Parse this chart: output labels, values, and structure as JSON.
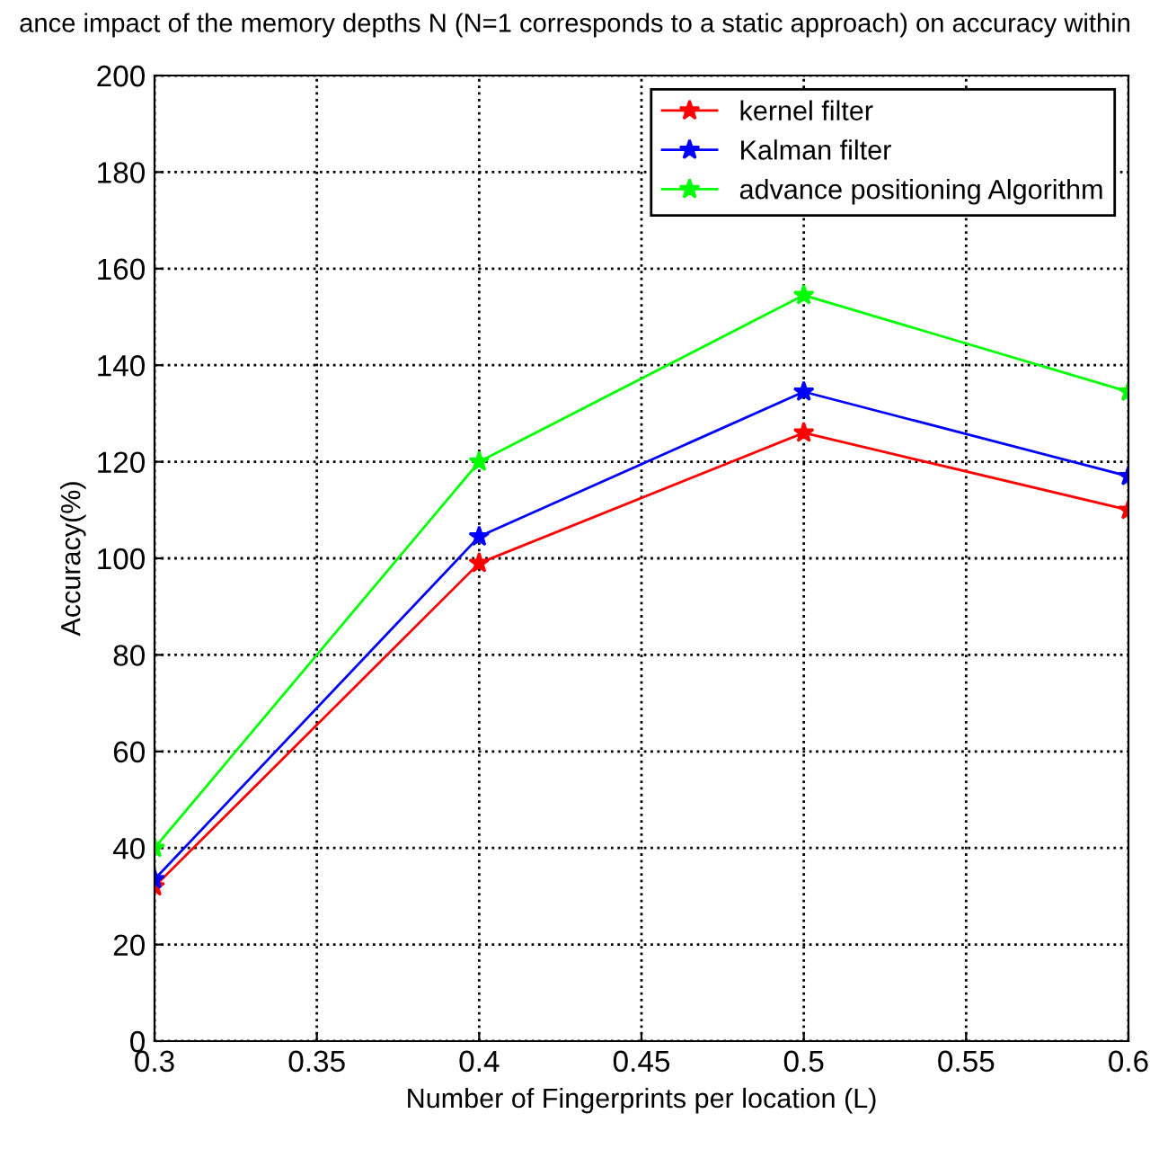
{
  "chart_data": {
    "type": "line",
    "title": "ance impact of the memory depths N (N=1 corresponds to a static approach) on accuracy within",
    "xlabel": "Number of Fingerprints per location (L)",
    "ylabel": "Accuracy(%)",
    "x": [
      0.3,
      0.4,
      0.5,
      0.6
    ],
    "series": [
      {
        "name": "kernel filter",
        "color": "#ff0000",
        "values": [
          32,
          99,
          126,
          110
        ]
      },
      {
        "name": "Kalman filter",
        "color": "#0000ff",
        "values": [
          33.5,
          104.5,
          134.5,
          117
        ]
      },
      {
        "name": "advance positioning Algorithm",
        "color": "#00ff00",
        "values": [
          40,
          120,
          154.5,
          134.5
        ]
      }
    ],
    "xlim": [
      0.3,
      0.6
    ],
    "xticks": [
      0.3,
      0.35,
      0.4,
      0.45,
      0.5,
      0.55,
      0.6
    ],
    "ylim": [
      0,
      200
    ],
    "yticks": [
      0,
      20,
      40,
      60,
      80,
      100,
      120,
      140,
      160,
      180,
      200
    ],
    "grid": true,
    "legend": "top right",
    "marker": "star",
    "line_style": "solid"
  }
}
